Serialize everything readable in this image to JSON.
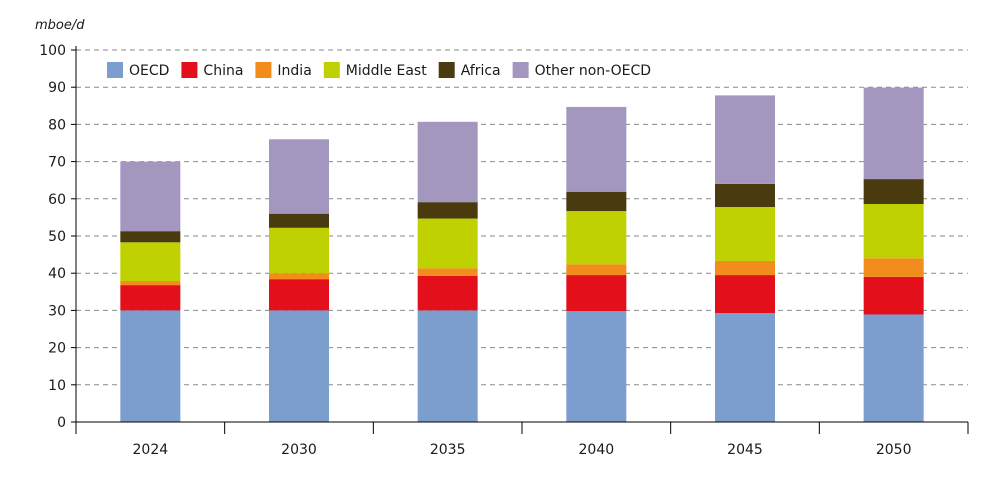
{
  "chart_data": {
    "type": "bar",
    "stacked": true,
    "unit_label": "mboe/d",
    "title": "",
    "xlabel": "",
    "ylabel": "",
    "ylim": [
      0,
      100
    ],
    "yticks": [
      0,
      10,
      20,
      30,
      40,
      50,
      60,
      70,
      80,
      90,
      100
    ],
    "grid": true,
    "legend_position": "top-left",
    "categories": [
      "2024",
      "2030",
      "2035",
      "2040",
      "2045",
      "2050"
    ],
    "series": [
      {
        "name": "OECD",
        "color": "#7B9ECF",
        "values": [
          30.0,
          30.0,
          30.0,
          29.8,
          29.3,
          28.9
        ]
      },
      {
        "name": "China",
        "color": "#E3101B",
        "values": [
          6.8,
          8.4,
          9.3,
          9.7,
          10.2,
          10.1
        ]
      },
      {
        "name": "India",
        "color": "#F28C1C",
        "values": [
          1.1,
          1.6,
          2.0,
          2.9,
          3.8,
          5.0
        ]
      },
      {
        "name": "Middle East",
        "color": "#BFD100",
        "values": [
          10.4,
          12.2,
          13.4,
          14.3,
          14.5,
          14.6
        ]
      },
      {
        "name": "Africa",
        "color": "#4A3A10",
        "values": [
          3.0,
          3.8,
          4.4,
          5.2,
          6.2,
          6.7
        ]
      },
      {
        "name": "Other non-OECD",
        "color": "#A497BF",
        "values": [
          18.7,
          20.0,
          21.6,
          22.8,
          23.8,
          24.6
        ]
      }
    ]
  }
}
